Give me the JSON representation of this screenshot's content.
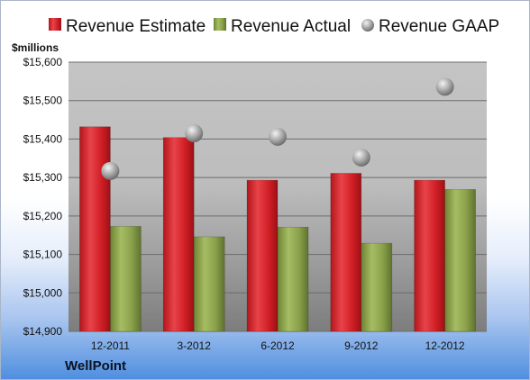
{
  "chart_data": {
    "type": "bar",
    "unit_label": "$millions",
    "company": "WellPoint",
    "categories": [
      "12-2011",
      "3-2012",
      "6-2012",
      "9-2012",
      "12-2012"
    ],
    "series": [
      {
        "name": "Revenue Estimate",
        "kind": "bar",
        "color": "#d21f26",
        "values": [
          15432,
          15404,
          15293,
          15311,
          15293
        ]
      },
      {
        "name": "Revenue Actual",
        "kind": "bar",
        "color": "#8aa04a",
        "values": [
          15173,
          15146,
          15171,
          15129,
          15269
        ]
      },
      {
        "name": "Revenue GAAP",
        "kind": "marker",
        "color": "#b3b3b3",
        "values": [
          15317,
          15415,
          15406,
          15352,
          15536
        ]
      }
    ],
    "ylim": [
      14900,
      15600
    ],
    "yticks": [
      "$14,900",
      "$15,000",
      "$15,100",
      "$15,200",
      "$15,300",
      "$15,400",
      "$15,500",
      "$15,600"
    ],
    "grid": true,
    "legend_position": "top"
  }
}
